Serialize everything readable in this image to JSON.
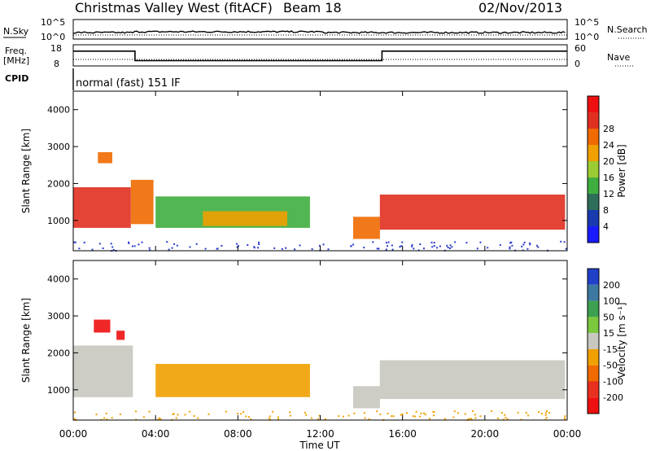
{
  "header": {
    "station": "Christmas Valley West (fitACF)",
    "beam": "Beam 18",
    "date": "02/Nov/2013"
  },
  "noise_panel": {
    "left_label": "N.Sky",
    "right_label": "N.Search",
    "left_ticks": [
      "10^5",
      "10^0"
    ],
    "right_ticks": [
      "10^5",
      "10^0"
    ]
  },
  "freq_panel": {
    "left_label_1": "Freq.",
    "left_label_2": "[MHz]",
    "right_label": "Nave",
    "left_ticks": [
      "18",
      "8"
    ],
    "right_ticks": [
      "60",
      "0"
    ]
  },
  "cpid": {
    "label": "CPID",
    "value": "normal (fast) 151 IF"
  },
  "x_axis": {
    "label": "Time UT",
    "ticks": [
      "00:00",
      "04:00",
      "08:00",
      "12:00",
      "16:00",
      "20:00",
      "00:00"
    ]
  },
  "power_colorbar": {
    "label": "Power [dB]",
    "ticks": [
      "4",
      "8",
      "12",
      "16",
      "20",
      "24",
      "28"
    ],
    "colors": [
      "#1a1aff",
      "#1a3ab0",
      "#2e6e5a",
      "#3fae3f",
      "#9ccc33",
      "#f0a000",
      "#f06a00",
      "#e03020",
      "#ee1010"
    ]
  },
  "velocity_colorbar": {
    "label": "Velocity [m s⁻¹]",
    "ticks": [
      "200",
      "100",
      "50",
      "15",
      "-15",
      "-50",
      "-100",
      "-200"
    ],
    "colors": [
      "#2040c8",
      "#3c78a0",
      "#3ca050",
      "#7cc83c",
      "#c8c8c0",
      "#f0a000",
      "#f06a00",
      "#e83020",
      "#ee1010"
    ]
  },
  "chart_data": {
    "type": "heatmap",
    "title": "Christmas Valley West (fitACF) Beam 18 02/Nov/2013",
    "xlabel": "Time UT",
    "ylabel": "Slant Range [km]",
    "xlim": [
      0,
      24
    ],
    "ylim": [
      180,
      4500
    ],
    "y_ticks": [
      1000,
      2000,
      3000,
      4000
    ],
    "panels": [
      {
        "name": "power",
        "colorbar": "Power [dB]",
        "clim": [
          0,
          30
        ],
        "regions": [
          {
            "t": [
              0.0,
              2.8
            ],
            "r": [
              800,
              1900
            ],
            "level": 26
          },
          {
            "t": [
              1.2,
              1.9
            ],
            "r": [
              2550,
              2850
            ],
            "level": 23
          },
          {
            "t": [
              2.8,
              3.9
            ],
            "r": [
              900,
              2100
            ],
            "level": 20
          },
          {
            "t": [
              4.0,
              11.5
            ],
            "r": [
              800,
              1650
            ],
            "level": 10
          },
          {
            "t": [
              6.3,
              10.4
            ],
            "r": [
              850,
              1250
            ],
            "level": 18
          },
          {
            "t": [
              13.6,
              14.9
            ],
            "r": [
              500,
              1100
            ],
            "level": 20
          },
          {
            "t": [
              14.9,
              23.9
            ],
            "r": [
              750,
              1700
            ],
            "level": 26
          }
        ]
      },
      {
        "name": "velocity",
        "colorbar": "Velocity [m s⁻¹]",
        "clim": [
          -200,
          200
        ],
        "regions": [
          {
            "t": [
              0.0,
              2.9
            ],
            "r": [
              800,
              2200
            ],
            "level": 0
          },
          {
            "t": [
              1.0,
              1.8
            ],
            "r": [
              2550,
              2900
            ],
            "level": -200
          },
          {
            "t": [
              2.1,
              2.5
            ],
            "r": [
              2350,
              2600
            ],
            "level": -200
          },
          {
            "t": [
              4.0,
              11.5
            ],
            "r": [
              800,
              1700
            ],
            "level": -50
          },
          {
            "t": [
              13.6,
              14.9
            ],
            "r": [
              500,
              1100
            ],
            "level": 0
          },
          {
            "t": [
              14.9,
              23.9
            ],
            "r": [
              750,
              1800
            ],
            "level": 0
          }
        ]
      }
    ],
    "noise": {
      "n_sky_level": 100,
      "n_search_level": 100
    },
    "frequency_mhz": [
      {
        "t": [
          0.0,
          3.0
        ],
        "value": 15
      },
      {
        "t": [
          3.0,
          15.0
        ],
        "value": 10.5
      },
      {
        "t": [
          15.0,
          24.0
        ],
        "value": 15
      }
    ]
  }
}
